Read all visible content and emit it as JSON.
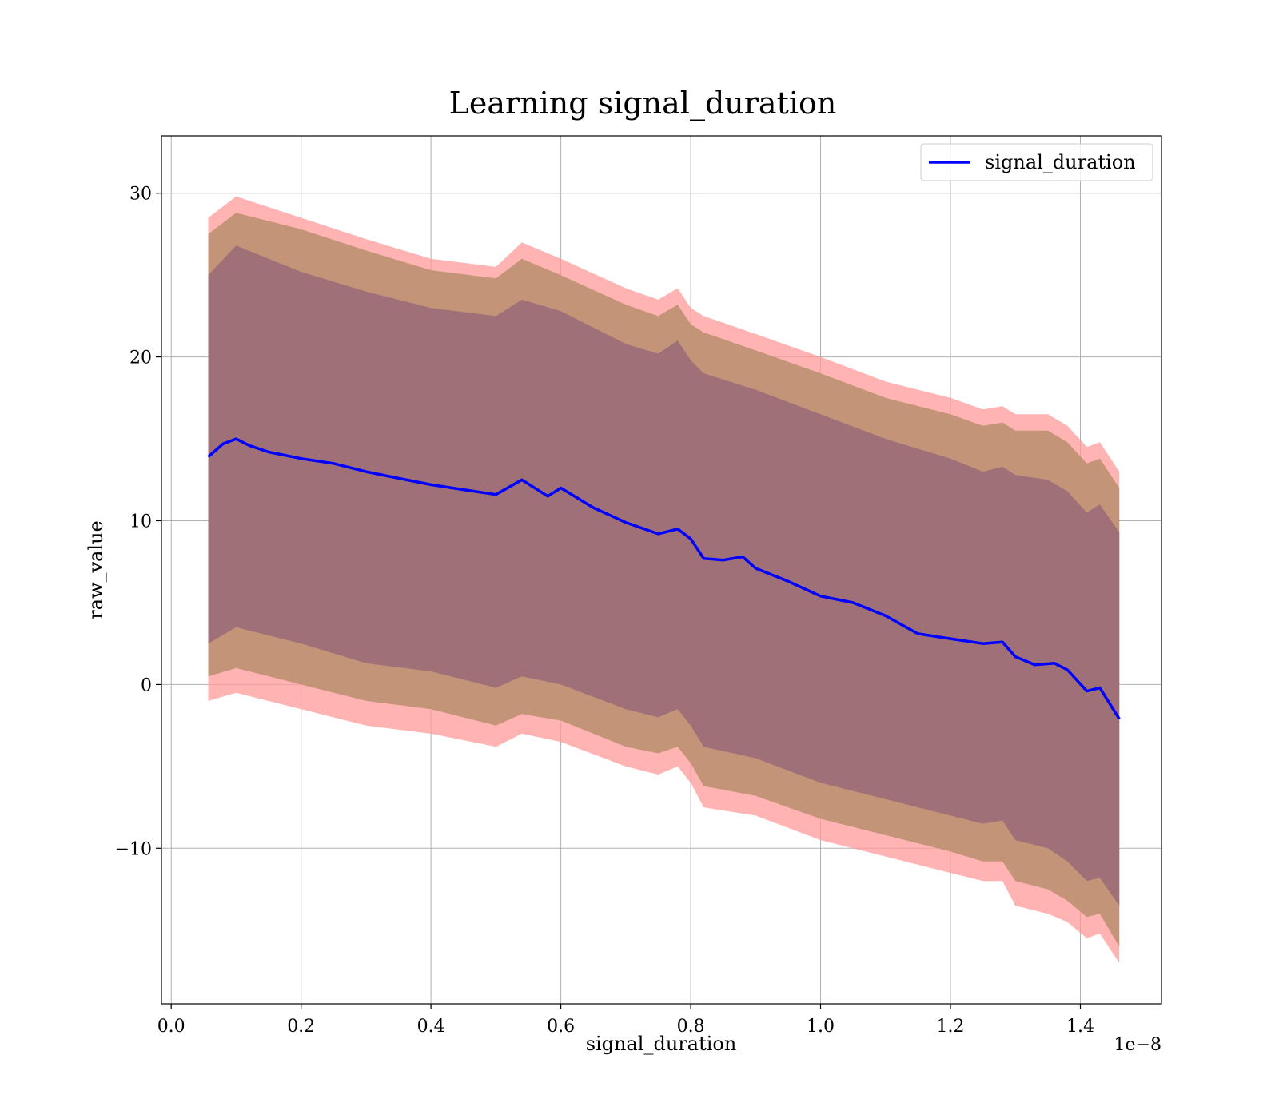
{
  "chart_data": {
    "type": "line",
    "title": "Learning signal_duration",
    "xlabel": "signal_duration",
    "ylabel": "raw_value",
    "x_offset_text": "1e−8",
    "xlim": [
      -0.015,
      1.525
    ],
    "ylim": [
      -19.5,
      33.5
    ],
    "x_ticks": [
      0.0,
      0.2,
      0.4,
      0.6,
      0.8,
      1.0,
      1.2,
      1.4
    ],
    "x_tick_labels": [
      "0.0",
      "0.2",
      "0.4",
      "0.6",
      "0.8",
      "1.0",
      "1.2",
      "1.4"
    ],
    "y_ticks": [
      -10,
      0,
      10,
      20,
      30
    ],
    "y_tick_labels": [
      "−10",
      "0",
      "10",
      "20",
      "30"
    ],
    "grid": true,
    "legend": {
      "position": "top-right",
      "entries": [
        "signal_duration"
      ]
    },
    "colors": {
      "mean_line": "#0000ff",
      "band_outer": "#ff9999",
      "band_mid": "#c49478",
      "band_inner": "#a07079"
    },
    "series": [
      {
        "name": "signal_duration",
        "x": [
          0.057,
          0.08,
          0.1,
          0.12,
          0.15,
          0.2,
          0.25,
          0.3,
          0.35,
          0.4,
          0.45,
          0.5,
          0.54,
          0.58,
          0.6,
          0.65,
          0.7,
          0.75,
          0.78,
          0.8,
          0.82,
          0.85,
          0.88,
          0.9,
          0.95,
          1.0,
          1.05,
          1.1,
          1.15,
          1.2,
          1.25,
          1.28,
          1.3,
          1.33,
          1.36,
          1.38,
          1.41,
          1.43,
          1.46
        ],
        "y": [
          13.9,
          14.7,
          15.0,
          14.6,
          14.2,
          13.8,
          13.5,
          13.0,
          12.6,
          12.2,
          11.9,
          11.6,
          12.5,
          11.5,
          12.0,
          10.8,
          9.9,
          9.2,
          9.5,
          8.9,
          7.7,
          7.6,
          7.8,
          7.1,
          6.3,
          5.4,
          5.0,
          4.2,
          3.1,
          2.8,
          2.5,
          2.6,
          1.7,
          1.2,
          1.3,
          0.9,
          -0.4,
          -0.2,
          -2.1
        ]
      }
    ],
    "bands": [
      {
        "level": "outer",
        "x": [
          0.057,
          0.1,
          0.2,
          0.3,
          0.4,
          0.5,
          0.54,
          0.6,
          0.7,
          0.75,
          0.78,
          0.8,
          0.82,
          0.9,
          1.0,
          1.1,
          1.2,
          1.25,
          1.28,
          1.3,
          1.35,
          1.38,
          1.41,
          1.43,
          1.46
        ],
        "upper": [
          28.5,
          29.8,
          28.5,
          27.2,
          26.0,
          25.5,
          27.0,
          26.0,
          24.2,
          23.5,
          24.2,
          23.0,
          22.5,
          21.4,
          20.0,
          18.5,
          17.5,
          16.8,
          17.0,
          16.5,
          16.5,
          15.8,
          14.5,
          14.8,
          13.0
        ],
        "lower": [
          -1.0,
          -0.5,
          -1.5,
          -2.5,
          -3.0,
          -3.8,
          -3.0,
          -3.5,
          -5.0,
          -5.5,
          -5.0,
          -6.0,
          -7.5,
          -8.0,
          -9.5,
          -10.5,
          -11.5,
          -12.0,
          -12.0,
          -13.5,
          -14.0,
          -14.5,
          -15.5,
          -15.2,
          -17.0
        ]
      },
      {
        "level": "mid",
        "x": [
          0.057,
          0.1,
          0.2,
          0.3,
          0.4,
          0.5,
          0.54,
          0.6,
          0.7,
          0.75,
          0.78,
          0.8,
          0.82,
          0.9,
          1.0,
          1.1,
          1.2,
          1.25,
          1.28,
          1.3,
          1.35,
          1.38,
          1.41,
          1.43,
          1.46
        ],
        "upper": [
          27.5,
          28.8,
          27.8,
          26.5,
          25.3,
          24.8,
          26.0,
          25.0,
          23.2,
          22.5,
          23.2,
          22.0,
          21.5,
          20.4,
          19.0,
          17.5,
          16.5,
          15.8,
          16.0,
          15.5,
          15.5,
          14.8,
          13.5,
          13.8,
          12.0
        ],
        "lower": [
          0.5,
          1.0,
          0.0,
          -1.0,
          -1.5,
          -2.5,
          -1.8,
          -2.2,
          -3.8,
          -4.2,
          -3.8,
          -4.8,
          -6.2,
          -6.8,
          -8.2,
          -9.2,
          -10.2,
          -10.8,
          -10.8,
          -12.0,
          -12.5,
          -13.2,
          -14.2,
          -14.0,
          -16.0
        ]
      },
      {
        "level": "inner",
        "x": [
          0.057,
          0.1,
          0.2,
          0.3,
          0.4,
          0.5,
          0.54,
          0.6,
          0.7,
          0.75,
          0.78,
          0.8,
          0.82,
          0.9,
          1.0,
          1.1,
          1.2,
          1.25,
          1.28,
          1.3,
          1.35,
          1.38,
          1.41,
          1.43,
          1.46
        ],
        "upper": [
          25.0,
          26.8,
          25.2,
          24.0,
          23.0,
          22.5,
          23.5,
          22.8,
          20.8,
          20.2,
          21.0,
          19.8,
          19.0,
          18.0,
          16.5,
          15.0,
          13.8,
          13.0,
          13.3,
          12.8,
          12.5,
          11.8,
          10.5,
          11.0,
          9.3
        ],
        "lower": [
          2.5,
          3.5,
          2.5,
          1.3,
          0.8,
          -0.2,
          0.5,
          0.0,
          -1.5,
          -2.0,
          -1.5,
          -2.5,
          -3.8,
          -4.5,
          -6.0,
          -7.0,
          -8.0,
          -8.5,
          -8.3,
          -9.5,
          -10.0,
          -10.8,
          -12.0,
          -11.8,
          -13.5
        ]
      }
    ]
  }
}
